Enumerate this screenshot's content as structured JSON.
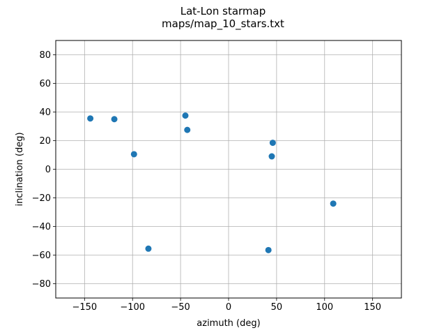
{
  "chart_data": {
    "type": "scatter",
    "title": "Lat-Lon starmap",
    "subtitle": "maps/map_10_stars.txt",
    "xlabel": "azimuth (deg)",
    "ylabel": "inclination (deg)",
    "xlim": [
      -180,
      180
    ],
    "ylim": [
      -90,
      90
    ],
    "xticks": [
      -150,
      -100,
      -50,
      0,
      50,
      100,
      150
    ],
    "xtick_labels": [
      "−150",
      "−100",
      "−50",
      "0",
      "50",
      "100",
      "150"
    ],
    "yticks": [
      -80,
      -60,
      -40,
      -20,
      0,
      20,
      40,
      60,
      80
    ],
    "ytick_labels": [
      "−80",
      "−60",
      "−40",
      "−20",
      "0",
      "20",
      "40",
      "60",
      "80"
    ],
    "grid": true,
    "marker_color": "#1f77b4",
    "grid_color": "#b0b0b0",
    "points": [
      {
        "x": -144,
        "y": 35.5
      },
      {
        "x": -119,
        "y": 35
      },
      {
        "x": -98.5,
        "y": 10.5
      },
      {
        "x": -83.5,
        "y": -55.5
      },
      {
        "x": -45,
        "y": 37.5
      },
      {
        "x": -43,
        "y": 27.5
      },
      {
        "x": 46,
        "y": 18.5
      },
      {
        "x": 45,
        "y": 9
      },
      {
        "x": 41.5,
        "y": -56.5
      },
      {
        "x": 109,
        "y": -24
      }
    ]
  }
}
